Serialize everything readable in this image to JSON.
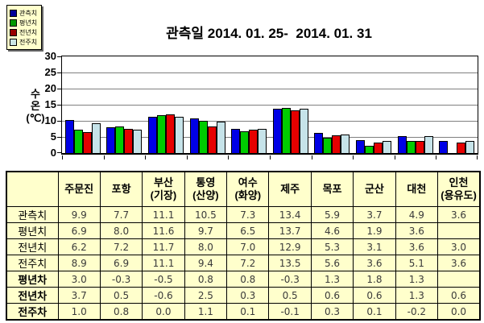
{
  "legend": {
    "items": [
      {
        "label": "관측치",
        "color": "#000099"
      },
      {
        "label": "평년치",
        "color": "#009900"
      },
      {
        "label": "전년치",
        "color": "#990000"
      },
      {
        "label": "전주치",
        "color": "#CCE6E6"
      }
    ]
  },
  "chart_data": {
    "type": "bar",
    "title": "관측일 2014. 01. 25-  2014. 01. 31",
    "ylabel": "수온(℃)",
    "ylabel_lines": [
      "수",
      "온",
      "(℃)"
    ],
    "xlabel": "",
    "categories": [
      "주문진",
      "포항",
      "부산(기장)",
      "통영(산양)",
      "여수(화양)",
      "제주",
      "목포",
      "군산",
      "대천",
      "인천(용유도)"
    ],
    "series": [
      {
        "name": "관측치",
        "color": "#0000E6",
        "values": [
          9.9,
          7.7,
          11.1,
          10.5,
          7.3,
          13.4,
          5.9,
          3.7,
          4.9,
          3.6
        ]
      },
      {
        "name": "평년치",
        "color": "#00CC00",
        "values": [
          6.9,
          8.0,
          11.6,
          9.7,
          6.5,
          13.7,
          4.6,
          1.9,
          3.6,
          null
        ]
      },
      {
        "name": "전년치",
        "color": "#E60000",
        "values": [
          6.2,
          7.2,
          11.7,
          8.0,
          7.0,
          12.9,
          5.3,
          3.1,
          3.6,
          3.0
        ]
      },
      {
        "name": "전주치",
        "color": "#C6E3E9",
        "values": [
          8.9,
          6.9,
          11.1,
          9.4,
          7.2,
          13.5,
          5.6,
          3.6,
          5.1,
          3.6
        ]
      }
    ],
    "ylim": [
      0,
      30
    ],
    "yticks": [
      0,
      5,
      10,
      15,
      20,
      25,
      30
    ],
    "grid": true,
    "gridline_color": "#808080",
    "legend_position": "top-left",
    "plot_background": "#FFFFFF",
    "legend_background": "#FFFFCC"
  },
  "table": {
    "corner": "",
    "background": "#FFFFCC",
    "columns": [
      [
        "주문진"
      ],
      [
        "포항"
      ],
      [
        "부산",
        "(기장)"
      ],
      [
        "통영",
        "(산양)"
      ],
      [
        "여수",
        "(화양)"
      ],
      [
        "제주"
      ],
      [
        "목포"
      ],
      [
        "군산"
      ],
      [
        "대천"
      ],
      [
        "인천",
        "(용유도)"
      ]
    ],
    "rows": [
      {
        "label": "관측치",
        "bold": false,
        "values": [
          "9.9",
          "7.7",
          "11.1",
          "10.5",
          "7.3",
          "13.4",
          "5.9",
          "3.7",
          "4.9",
          "3.6"
        ]
      },
      {
        "label": "평년치",
        "bold": false,
        "values": [
          "6.9",
          "8.0",
          "11.6",
          "9.7",
          "6.5",
          "13.7",
          "4.6",
          "1.9",
          "3.6",
          ""
        ]
      },
      {
        "label": "전년치",
        "bold": false,
        "values": [
          "6.2",
          "7.2",
          "11.7",
          "8.0",
          "7.0",
          "12.9",
          "5.3",
          "3.1",
          "3.6",
          "3.0"
        ]
      },
      {
        "label": "전주치",
        "bold": false,
        "values": [
          "8.9",
          "6.9",
          "11.1",
          "9.4",
          "7.2",
          "13.5",
          "5.6",
          "3.6",
          "5.1",
          "3.6"
        ]
      },
      {
        "label": "평년차",
        "bold": true,
        "values": [
          "3.0",
          "-0.3",
          "-0.5",
          "0.8",
          "0.8",
          "-0.3",
          "1.3",
          "1.8",
          "1.3",
          ""
        ]
      },
      {
        "label": "전년차",
        "bold": true,
        "values": [
          "3.7",
          "0.5",
          "-0.6",
          "2.5",
          "0.3",
          "0.5",
          "0.6",
          "0.6",
          "1.3",
          "0.6"
        ]
      },
      {
        "label": "전주차",
        "bold": true,
        "values": [
          "1.0",
          "0.8",
          "0.0",
          "1.1",
          "0.1",
          "-0.1",
          "0.3",
          "0.1",
          "-0.2",
          "0.0"
        ]
      }
    ]
  }
}
